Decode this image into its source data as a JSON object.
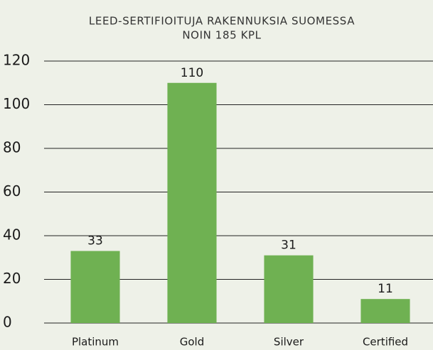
{
  "chart_data": {
    "type": "bar",
    "title": [
      "LEED-SERTIFIOITUJA RAKENNUKSIA SUOMESSA",
      "NOIN 185 KPL"
    ],
    "categories": [
      "Platinum",
      "Gold",
      "Silver",
      "Certified"
    ],
    "values": [
      33,
      110,
      31,
      11
    ],
    "color": "#6fb152",
    "ylim": [
      0,
      120
    ],
    "yticks": [
      0,
      20,
      40,
      60,
      80,
      100,
      120
    ],
    "grid": true
  }
}
